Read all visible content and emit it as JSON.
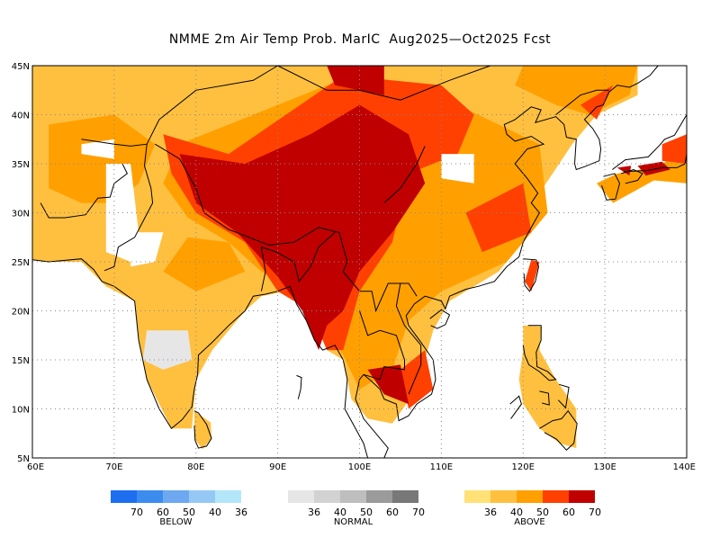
{
  "title": "NMME 2m Air Temp Prob. MarIC  Aug2025—Oct2025 Fcst",
  "map": {
    "lon_min": 60,
    "lon_max": 140,
    "lat_min": 5,
    "lat_max": 45,
    "lat_ticks": [
      "45N",
      "40N",
      "35N",
      "30N",
      "25N",
      "20N",
      "15N",
      "10N",
      "5N"
    ],
    "lon_ticks": [
      "60E",
      "70E",
      "80E",
      "90E",
      "100E",
      "110E",
      "120E",
      "130E",
      "140E"
    ],
    "grid": true
  },
  "legend": {
    "below": {
      "caption": "BELOW",
      "colors": [
        "#1e6ef0",
        "#3c8cf0",
        "#6ea8f0",
        "#96c8f5",
        "#b4e6fa"
      ],
      "ticks": [
        "70",
        "60",
        "50",
        "40",
        "36"
      ]
    },
    "normal": {
      "caption": "NORMAL",
      "colors": [
        "#e6e6e6",
        "#d2d2d2",
        "#bebebe",
        "#9b9b9b",
        "#787878"
      ],
      "ticks": [
        "36",
        "40",
        "50",
        "60",
        "70"
      ]
    },
    "above": {
      "caption": "ABOVE",
      "colors": [
        "#ffe178",
        "#ffc040",
        "#ffa000",
        "#ff4000",
        "#c00000"
      ],
      "ticks": [
        "36",
        "40",
        "50",
        "60",
        "70"
      ]
    }
  }
}
